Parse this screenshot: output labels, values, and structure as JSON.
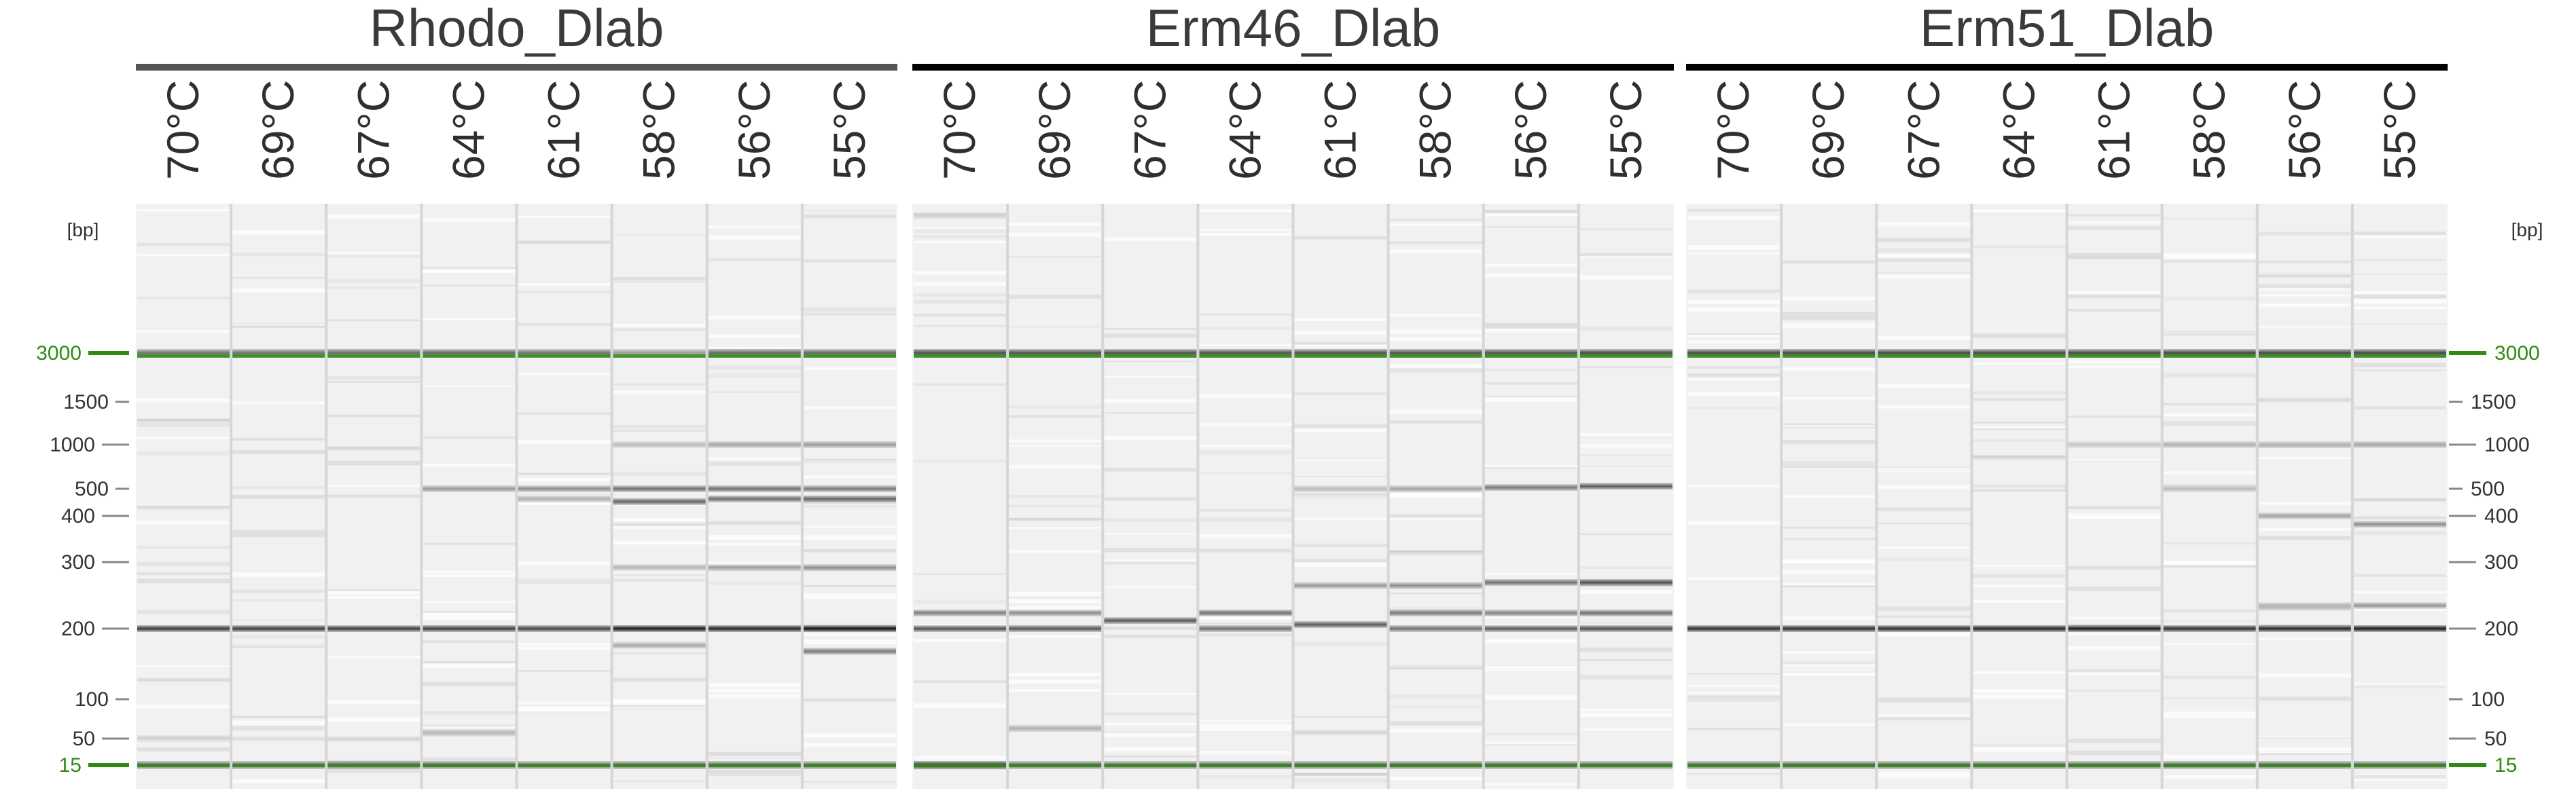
{
  "panels": [
    {
      "title": "Rhodo_Dlab",
      "lanes": [
        {
          "label": "70°C",
          "bands": [
            {
              "bp": 3000,
              "i": 0.55
            },
            {
              "bp": 200,
              "i": 0.8
            },
            {
              "bp": 50,
              "i": 0.12
            },
            {
              "bp": 15,
              "i": 0.6
            }
          ]
        },
        {
          "label": "69°C",
          "bands": [
            {
              "bp": 3000,
              "i": 0.55
            },
            {
              "bp": 200,
              "i": 0.78
            },
            {
              "bp": 15,
              "i": 0.6
            }
          ]
        },
        {
          "label": "67°C",
          "bands": [
            {
              "bp": 3000,
              "i": 0.55
            },
            {
              "bp": 200,
              "i": 0.78
            },
            {
              "bp": 50,
              "i": 0.1
            },
            {
              "bp": 15,
              "i": 0.6
            }
          ]
        },
        {
          "label": "64°C",
          "bands": [
            {
              "bp": 3000,
              "i": 0.6
            },
            {
              "bp": 500,
              "i": 0.35
            },
            {
              "bp": 200,
              "i": 0.8
            },
            {
              "bp": 55,
              "i": 0.2
            },
            {
              "bp": 15,
              "i": 0.6
            }
          ]
        },
        {
          "label": "61°C",
          "bands": [
            {
              "bp": 3000,
              "i": 0.55
            },
            {
              "bp": 500,
              "i": 0.4
            },
            {
              "bp": 460,
              "i": 0.25
            },
            {
              "bp": 200,
              "i": 0.75
            },
            {
              "bp": 15,
              "i": 0.6
            }
          ]
        },
        {
          "label": "58°C",
          "bands": [
            {
              "bp": 3000,
              "i": 0.35
            },
            {
              "bp": 1000,
              "i": 0.2
            },
            {
              "bp": 500,
              "i": 0.55
            },
            {
              "bp": 450,
              "i": 0.6
            },
            {
              "bp": 290,
              "i": 0.25
            },
            {
              "bp": 200,
              "i": 0.95
            },
            {
              "bp": 170,
              "i": 0.3
            },
            {
              "bp": 15,
              "i": 0.6
            }
          ]
        },
        {
          "label": "56°C",
          "bands": [
            {
              "bp": 3000,
              "i": 0.6
            },
            {
              "bp": 1000,
              "i": 0.3
            },
            {
              "bp": 500,
              "i": 0.55
            },
            {
              "bp": 460,
              "i": 0.55
            },
            {
              "bp": 290,
              "i": 0.35
            },
            {
              "bp": 200,
              "i": 0.9
            },
            {
              "bp": 15,
              "i": 0.6
            }
          ]
        },
        {
          "label": "55°C",
          "bands": [
            {
              "bp": 3000,
              "i": 0.6
            },
            {
              "bp": 1000,
              "i": 0.35
            },
            {
              "bp": 500,
              "i": 0.5
            },
            {
              "bp": 460,
              "i": 0.6
            },
            {
              "bp": 290,
              "i": 0.4
            },
            {
              "bp": 200,
              "i": 1.0
            },
            {
              "bp": 160,
              "i": 0.5
            },
            {
              "bp": 15,
              "i": 0.6
            }
          ]
        }
      ]
    },
    {
      "title": "Erm46_Dlab",
      "lanes": [
        {
          "label": "70°C",
          "bands": [
            {
              "bp": 3000,
              "i": 0.7
            },
            {
              "bp": 220,
              "i": 0.45
            },
            {
              "bp": 200,
              "i": 0.7
            },
            {
              "bp": 15,
              "i": 0.85
            }
          ]
        },
        {
          "label": "69°C",
          "bands": [
            {
              "bp": 3000,
              "i": 0.7
            },
            {
              "bp": 220,
              "i": 0.4
            },
            {
              "bp": 200,
              "i": 0.65
            },
            {
              "bp": 60,
              "i": 0.25
            },
            {
              "bp": 15,
              "i": 0.6
            }
          ]
        },
        {
          "label": "67°C",
          "bands": [
            {
              "bp": 3000,
              "i": 0.7
            },
            {
              "bp": 210,
              "i": 0.65
            },
            {
              "bp": 15,
              "i": 0.6
            }
          ]
        },
        {
          "label": "64°C",
          "bands": [
            {
              "bp": 3000,
              "i": 0.7
            },
            {
              "bp": 220,
              "i": 0.55
            },
            {
              "bp": 200,
              "i": 0.55
            },
            {
              "bp": 15,
              "i": 0.6
            }
          ]
        },
        {
          "label": "61°C",
          "bands": [
            {
              "bp": 3000,
              "i": 0.7
            },
            {
              "bp": 500,
              "i": 0.2
            },
            {
              "bp": 260,
              "i": 0.35
            },
            {
              "bp": 205,
              "i": 0.65
            },
            {
              "bp": 15,
              "i": 0.6
            }
          ]
        },
        {
          "label": "58°C",
          "bands": [
            {
              "bp": 3000,
              "i": 0.7
            },
            {
              "bp": 500,
              "i": 0.3
            },
            {
              "bp": 260,
              "i": 0.4
            },
            {
              "bp": 220,
              "i": 0.5
            },
            {
              "bp": 200,
              "i": 0.55
            },
            {
              "bp": 15,
              "i": 0.6
            }
          ]
        },
        {
          "label": "56°C",
          "bands": [
            {
              "bp": 3000,
              "i": 0.7
            },
            {
              "bp": 510,
              "i": 0.5
            },
            {
              "bp": 265,
              "i": 0.55
            },
            {
              "bp": 220,
              "i": 0.45
            },
            {
              "bp": 200,
              "i": 0.65
            },
            {
              "bp": 15,
              "i": 0.6
            }
          ]
        },
        {
          "label": "55°C",
          "bands": [
            {
              "bp": 3000,
              "i": 0.7
            },
            {
              "bp": 520,
              "i": 0.65
            },
            {
              "bp": 265,
              "i": 0.7
            },
            {
              "bp": 220,
              "i": 0.55
            },
            {
              "bp": 200,
              "i": 0.7
            },
            {
              "bp": 15,
              "i": 0.6
            }
          ]
        }
      ]
    },
    {
      "title": "Erm51_Dlab",
      "lanes": [
        {
          "label": "70°C",
          "bands": [
            {
              "bp": 3000,
              "i": 0.75
            },
            {
              "bp": 200,
              "i": 0.85
            },
            {
              "bp": 15,
              "i": 0.6
            }
          ]
        },
        {
          "label": "69°C",
          "bands": [
            {
              "bp": 3000,
              "i": 0.75
            },
            {
              "bp": 200,
              "i": 0.85
            },
            {
              "bp": 15,
              "i": 0.6
            }
          ]
        },
        {
          "label": "67°C",
          "bands": [
            {
              "bp": 3000,
              "i": 0.75
            },
            {
              "bp": 200,
              "i": 0.85
            },
            {
              "bp": 15,
              "i": 0.6
            }
          ]
        },
        {
          "label": "64°C",
          "bands": [
            {
              "bp": 3000,
              "i": 0.75
            },
            {
              "bp": 200,
              "i": 0.9
            },
            {
              "bp": 15,
              "i": 0.6
            }
          ]
        },
        {
          "label": "61°C",
          "bands": [
            {
              "bp": 3000,
              "i": 0.75
            },
            {
              "bp": 1000,
              "i": 0.15
            },
            {
              "bp": 200,
              "i": 0.95
            },
            {
              "bp": 15,
              "i": 0.6
            }
          ]
        },
        {
          "label": "58°C",
          "bands": [
            {
              "bp": 3000,
              "i": 0.75
            },
            {
              "bp": 1000,
              "i": 0.25
            },
            {
              "bp": 500,
              "i": 0.2
            },
            {
              "bp": 200,
              "i": 0.85
            },
            {
              "bp": 15,
              "i": 0.6
            }
          ]
        },
        {
          "label": "56°C",
          "bands": [
            {
              "bp": 3000,
              "i": 0.75
            },
            {
              "bp": 1000,
              "i": 0.25
            },
            {
              "bp": 400,
              "i": 0.3
            },
            {
              "bp": 230,
              "i": 0.25
            },
            {
              "bp": 200,
              "i": 0.9
            },
            {
              "bp": 15,
              "i": 0.6
            }
          ]
        },
        {
          "label": "55°C",
          "bands": [
            {
              "bp": 3000,
              "i": 0.75
            },
            {
              "bp": 1000,
              "i": 0.3
            },
            {
              "bp": 380,
              "i": 0.4
            },
            {
              "bp": 230,
              "i": 0.3
            },
            {
              "bp": 200,
              "i": 0.95
            },
            {
              "bp": 15,
              "i": 0.6
            }
          ]
        }
      ]
    }
  ],
  "ladder": {
    "unit": "[bp]",
    "markers": [
      {
        "bp": 3000,
        "label": "3000",
        "highlight": true
      },
      {
        "bp": 1500,
        "label": "1500",
        "highlight": false
      },
      {
        "bp": 1000,
        "label": "1000",
        "highlight": false
      },
      {
        "bp": 500,
        "label": "500",
        "highlight": false
      },
      {
        "bp": 400,
        "label": "400",
        "highlight": false
      },
      {
        "bp": 300,
        "label": "300",
        "highlight": false
      },
      {
        "bp": 200,
        "label": "200",
        "highlight": false
      },
      {
        "bp": 100,
        "label": "100",
        "highlight": false
      },
      {
        "bp": 50,
        "label": "50",
        "highlight": false
      },
      {
        "bp": 15,
        "label": "15",
        "highlight": true
      }
    ]
  },
  "colors": {
    "marker_green": "#2e8b14",
    "band_dark": "#1a1a1a",
    "gel_background": "#f3f3f3",
    "lane_separator": "#d6d6d6",
    "title_rule_left": "#555555",
    "title_rule": "#000000"
  }
}
